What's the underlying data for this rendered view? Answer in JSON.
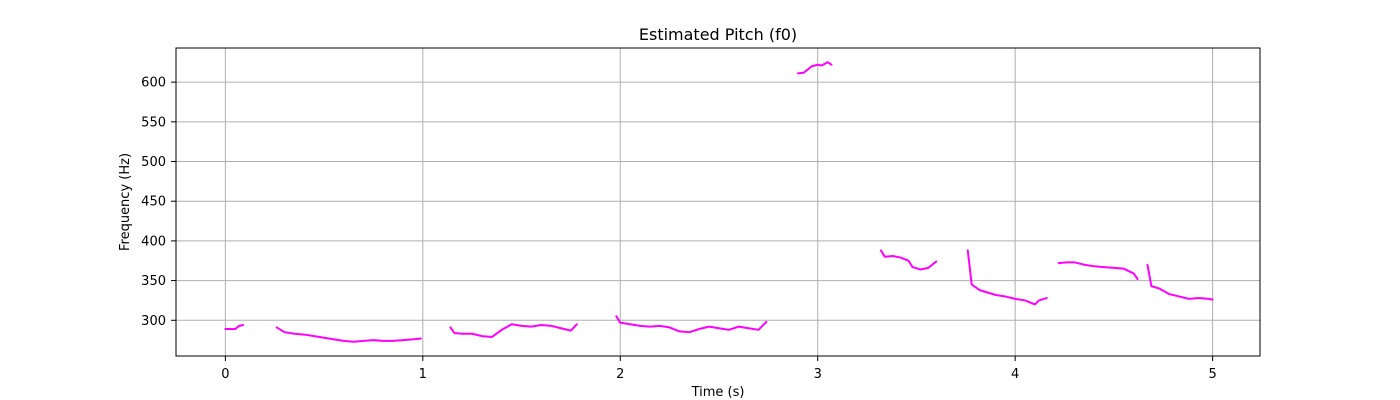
{
  "chart_data": {
    "type": "line",
    "title": "Estimated Pitch (f0)",
    "xlabel": "Time (s)",
    "ylabel": "Frequency (Hz)",
    "xlim": [
      -0.25,
      5.24
    ],
    "ylim": [
      255,
      643
    ],
    "xticks": [
      0,
      1,
      2,
      3,
      4,
      5
    ],
    "xtick_labels": [
      "0",
      "1",
      "2",
      "3",
      "4",
      "5"
    ],
    "yticks": [
      300,
      350,
      400,
      450,
      500,
      550,
      600
    ],
    "ytick_labels": [
      "300",
      "350",
      "400",
      "450",
      "500",
      "550",
      "600"
    ],
    "grid": true,
    "line_color": "#ff00ff",
    "series": [
      {
        "segments": [
          [
            [
              0.0,
              289
            ],
            [
              0.05,
              289
            ],
            [
              0.07,
              293
            ],
            [
              0.09,
              294
            ]
          ],
          [
            [
              0.26,
              291
            ],
            [
              0.3,
              285
            ],
            [
              0.35,
              283
            ],
            [
              0.4,
              282
            ],
            [
              0.45,
              280
            ],
            [
              0.5,
              278
            ],
            [
              0.55,
              276
            ],
            [
              0.6,
              274
            ],
            [
              0.65,
              273
            ],
            [
              0.7,
              274
            ],
            [
              0.75,
              275
            ],
            [
              0.8,
              274
            ],
            [
              0.85,
              274
            ],
            [
              0.9,
              275
            ],
            [
              0.95,
              276
            ],
            [
              0.99,
              277
            ]
          ],
          [
            [
              1.14,
              291
            ],
            [
              1.16,
              284
            ],
            [
              1.2,
              283
            ],
            [
              1.25,
              283
            ],
            [
              1.3,
              280
            ],
            [
              1.35,
              279
            ],
            [
              1.4,
              288
            ],
            [
              1.45,
              295
            ],
            [
              1.5,
              293
            ],
            [
              1.55,
              292
            ],
            [
              1.6,
              294
            ],
            [
              1.65,
              293
            ],
            [
              1.7,
              290
            ],
            [
              1.75,
              287
            ],
            [
              1.78,
              295
            ]
          ],
          [
            [
              1.98,
              305
            ],
            [
              2.0,
              297
            ],
            [
              2.05,
              295
            ],
            [
              2.1,
              293
            ],
            [
              2.15,
              292
            ],
            [
              2.2,
              293
            ],
            [
              2.25,
              291
            ],
            [
              2.3,
              286
            ],
            [
              2.35,
              285
            ],
            [
              2.4,
              289
            ],
            [
              2.45,
              292
            ],
            [
              2.5,
              290
            ],
            [
              2.55,
              288
            ],
            [
              2.6,
              292
            ],
            [
              2.65,
              290
            ],
            [
              2.7,
              288
            ],
            [
              2.74,
              298
            ]
          ],
          [
            [
              2.9,
              611
            ],
            [
              2.93,
              612
            ],
            [
              2.97,
              620
            ],
            [
              3.0,
              622
            ],
            [
              3.02,
              621
            ],
            [
              3.05,
              625
            ],
            [
              3.07,
              622
            ]
          ],
          [
            [
              3.32,
              388
            ],
            [
              3.34,
              380
            ],
            [
              3.38,
              381
            ],
            [
              3.42,
              379
            ],
            [
              3.46,
              375
            ],
            [
              3.48,
              367
            ],
            [
              3.52,
              364
            ],
            [
              3.56,
              366
            ],
            [
              3.6,
              374
            ]
          ],
          [
            [
              3.76,
              388
            ],
            [
              3.78,
              345
            ],
            [
              3.82,
              338
            ],
            [
              3.86,
              335
            ],
            [
              3.9,
              332
            ],
            [
              3.95,
              330
            ],
            [
              4.0,
              327
            ],
            [
              4.05,
              325
            ],
            [
              4.08,
              322
            ],
            [
              4.1,
              320
            ],
            [
              4.12,
              325
            ],
            [
              4.16,
              328
            ]
          ],
          [
            [
              4.22,
              372
            ],
            [
              4.26,
              373
            ],
            [
              4.3,
              373
            ],
            [
              4.35,
              370
            ],
            [
              4.4,
              368
            ],
            [
              4.45,
              367
            ],
            [
              4.5,
              366
            ],
            [
              4.55,
              365
            ],
            [
              4.6,
              359
            ],
            [
              4.62,
              352
            ]
          ],
          [
            [
              4.67,
              370
            ],
            [
              4.69,
              343
            ],
            [
              4.73,
              340
            ],
            [
              4.78,
              333
            ],
            [
              4.83,
              330
            ],
            [
              4.88,
              327
            ],
            [
              4.93,
              328
            ],
            [
              4.98,
              327
            ],
            [
              5.0,
              326
            ]
          ]
        ]
      }
    ]
  }
}
